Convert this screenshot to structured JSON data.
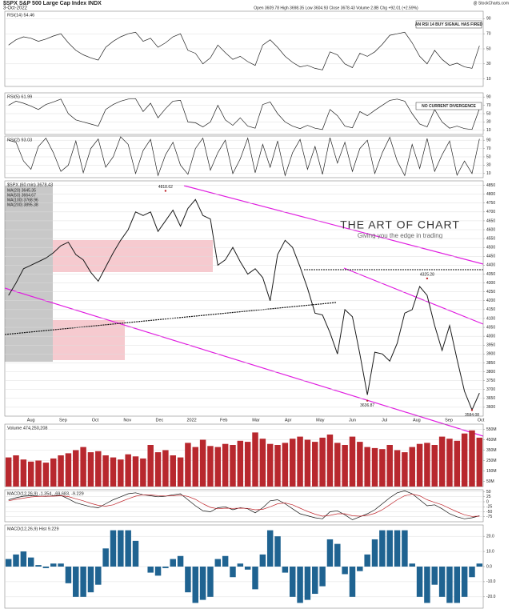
{
  "header": {
    "symbol": "$SPX S&P 500 Large Cap Index INDX",
    "date": "3-Oct-2022",
    "quote": "Open 3609.78  High 3698.35  Low 3604.93  Close 3678.43  Volume 2.8B  Chg +92.01 (+2.59%)",
    "source": "@ StockCharts.com"
  },
  "logo": {
    "title": "THE ART OF CHART",
    "tagline": "Giving you the edge in trading"
  },
  "x_axis": {
    "labels": [
      "Aug",
      "Sep",
      "Oct",
      "Nov",
      "Dec",
      "2022",
      "Feb",
      "Mar",
      "Apr",
      "May",
      "Jun",
      "Jul",
      "Aug",
      "Sep",
      "Oct"
    ]
  },
  "chart_data": [
    {
      "type": "line",
      "title": "RSI(14) 54.46",
      "annotation": "AN RSI 14 BUY SIGNAL HAS FIRED",
      "ylim": [
        0,
        100
      ],
      "yticks": [
        90,
        70,
        50,
        30,
        10
      ],
      "grid": true,
      "series": [
        {
          "name": "RSI(14)",
          "color": "#222222",
          "values": [
            55,
            62,
            66,
            64,
            60,
            63,
            67,
            70,
            58,
            48,
            42,
            38,
            35,
            52,
            60,
            66,
            70,
            72,
            60,
            64,
            52,
            58,
            66,
            70,
            48,
            44,
            30,
            38,
            55,
            45,
            36,
            40,
            33,
            28,
            55,
            62,
            52,
            40,
            32,
            26,
            28,
            24,
            22,
            46,
            42,
            30,
            25,
            44,
            40,
            46,
            56,
            68,
            70,
            72,
            58,
            40,
            30,
            48,
            36,
            28,
            31,
            26,
            24,
            54
          ]
        }
      ]
    },
    {
      "type": "line",
      "title": "RSI(5) 61.99",
      "annotation": "NO CURRENT DIVERGENCE",
      "ylim": [
        0,
        100
      ],
      "yticks": [
        90,
        70,
        50,
        30,
        10
      ],
      "grid": true,
      "series": [
        {
          "name": "RSI(5)",
          "color": "#222222",
          "values": [
            70,
            80,
            75,
            68,
            60,
            72,
            78,
            85,
            50,
            35,
            30,
            25,
            20,
            60,
            72,
            80,
            85,
            86,
            55,
            75,
            40,
            62,
            80,
            82,
            30,
            28,
            18,
            30,
            70,
            35,
            22,
            40,
            20,
            15,
            72,
            78,
            50,
            30,
            20,
            14,
            22,
            15,
            12,
            60,
            45,
            20,
            16,
            55,
            45,
            58,
            70,
            82,
            85,
            80,
            50,
            25,
            18,
            60,
            30,
            15,
            20,
            14,
            12,
            62
          ]
        }
      ]
    },
    {
      "type": "line",
      "title": "RSI(2) 93.03",
      "ylim": [
        0,
        100
      ],
      "yticks": [
        90,
        70,
        50,
        30,
        10
      ],
      "grid": true,
      "series": [
        {
          "name": "RSI(2)",
          "color": "#222222",
          "values": [
            90,
            85,
            40,
            20,
            75,
            95,
            60,
            15,
            30,
            88,
            12,
            70,
            93,
            25,
            50,
            98,
            80,
            10,
            65,
            92,
            5,
            55,
            85,
            30,
            8,
            70,
            95,
            18,
            60,
            90,
            10,
            45,
            95,
            12,
            80,
            25,
            88,
            5,
            60,
            92,
            20,
            75,
            8,
            96,
            35,
            85,
            15,
            70,
            90,
            10,
            60,
            97,
            40,
            5,
            80,
            22,
            94,
            15,
            55,
            88,
            6,
            40,
            10,
            93
          ]
        }
      ]
    },
    {
      "type": "line",
      "title": "$SPX (60 min) 3678.43",
      "legend": [
        "MA(20) 3645.35",
        "MA(50) 3664.67",
        "MA(100) 3768.96",
        "MA(200) 3895.38"
      ],
      "ylim": [
        3550,
        4875
      ],
      "yticks": [
        4850,
        4800,
        4750,
        4700,
        4650,
        4600,
        4550,
        4500,
        4450,
        4400,
        4350,
        4300,
        4250,
        4200,
        4150,
        4100,
        4050,
        4000,
        3950,
        3900,
        3850,
        3800,
        3750,
        3700,
        3650,
        3600
      ],
      "grid": true,
      "annotations": [
        {
          "value": 4818.62,
          "label": "4818.62"
        },
        {
          "value": 3636.87,
          "label": "3636.87"
        },
        {
          "value": 4325.28,
          "label": "4325.28"
        },
        {
          "value": 3584.08,
          "label": "3584.08"
        }
      ],
      "series": [
        {
          "name": "$SPX",
          "color": "#1a1a1a",
          "values": [
            4230,
            4300,
            4380,
            4400,
            4420,
            4440,
            4470,
            4510,
            4530,
            4460,
            4430,
            4360,
            4310,
            4390,
            4470,
            4540,
            4600,
            4700,
            4680,
            4700,
            4590,
            4650,
            4710,
            4620,
            4720,
            4770,
            4680,
            4660,
            4400,
            4430,
            4500,
            4420,
            4350,
            4380,
            4330,
            4200,
            4460,
            4540,
            4500,
            4390,
            4270,
            4130,
            4120,
            4020,
            3900,
            4150,
            4110,
            3900,
            3670,
            3910,
            3900,
            3860,
            3960,
            4130,
            4150,
            4280,
            4230,
            4060,
            3920,
            4060,
            3870,
            3690,
            3585,
            3680
          ]
        }
      ]
    },
    {
      "type": "bar",
      "title": "Volume 474,250,208",
      "ylim": [
        0,
        600000000
      ],
      "yticks": [
        {
          "value": 550000000,
          "label": "550M"
        },
        {
          "value": 450000000,
          "label": "450M"
        },
        {
          "value": 350000000,
          "label": "350M"
        },
        {
          "value": 250000000,
          "label": "250M"
        },
        {
          "value": 150000000,
          "label": "150M"
        },
        {
          "value": 50000000,
          "label": "50M"
        }
      ],
      "grid": true,
      "series": [
        {
          "name": "Volume",
          "color": "#b8282e",
          "values": [
            280000000,
            300000000,
            260000000,
            240000000,
            250000000,
            230000000,
            270000000,
            300000000,
            320000000,
            350000000,
            380000000,
            330000000,
            340000000,
            300000000,
            280000000,
            260000000,
            310000000,
            290000000,
            270000000,
            400000000,
            330000000,
            350000000,
            300000000,
            280000000,
            420000000,
            380000000,
            450000000,
            390000000,
            380000000,
            410000000,
            400000000,
            440000000,
            430000000,
            520000000,
            460000000,
            410000000,
            400000000,
            420000000,
            460000000,
            480000000,
            450000000,
            430000000,
            470000000,
            500000000,
            420000000,
            400000000,
            480000000,
            430000000,
            380000000,
            370000000,
            360000000,
            400000000,
            350000000,
            330000000,
            380000000,
            410000000,
            420000000,
            400000000,
            480000000,
            460000000,
            440000000,
            510000000,
            540000000,
            470000000
          ]
        }
      ]
    },
    {
      "type": "line",
      "title": "MACD(12,26,9) -1.354, -69.683, -9.229",
      "ylim": [
        -100,
        60
      ],
      "yticks": [
        50,
        25,
        0,
        -25,
        -50,
        -75
      ],
      "grid": true,
      "series": [
        {
          "name": "MACD",
          "color": "#111111",
          "values": [
            10,
            20,
            28,
            30,
            28,
            27,
            30,
            32,
            15,
            -5,
            -15,
            -25,
            -30,
            -10,
            10,
            25,
            40,
            45,
            35,
            30,
            25,
            28,
            35,
            40,
            10,
            -20,
            -45,
            -50,
            -30,
            -25,
            -40,
            -30,
            -35,
            -55,
            -30,
            5,
            10,
            -10,
            -35,
            -60,
            -70,
            -80,
            -85,
            -50,
            -45,
            -65,
            -90,
            -75,
            -60,
            -40,
            -10,
            20,
            45,
            55,
            40,
            10,
            -20,
            -15,
            -35,
            -60,
            -75,
            -85,
            -80,
            -70
          ]
        },
        {
          "name": "Signal",
          "color": "#c0282e",
          "values": [
            5,
            12,
            18,
            24,
            27,
            28,
            28,
            30,
            26,
            15,
            5,
            -8,
            -18,
            -22,
            -15,
            0,
            15,
            28,
            35,
            34,
            31,
            29,
            30,
            33,
            27,
            12,
            -10,
            -28,
            -35,
            -32,
            -33,
            -32,
            -33,
            -40,
            -38,
            -25,
            -10,
            -6,
            -15,
            -32,
            -48,
            -62,
            -72,
            -68,
            -60,
            -60,
            -70,
            -72,
            -68,
            -58,
            -40,
            -15,
            10,
            30,
            38,
            30,
            10,
            -3,
            -15,
            -33,
            -50,
            -65,
            -73,
            -72
          ]
        }
      ]
    },
    {
      "type": "bar",
      "title": "MACD(12,26,9) Hist 9.229",
      "ylim": [
        -27.5,
        27.5
      ],
      "yticks": [
        {
          "value": 20,
          "label": "20.0"
        },
        {
          "value": 10,
          "label": "10.0"
        },
        {
          "value": 0,
          "label": "0.0"
        },
        {
          "value": -10,
          "label": "-10.0"
        },
        {
          "value": -20,
          "label": "-20.0"
        }
      ],
      "grid": true,
      "series": [
        {
          "name": "Hist",
          "color": "#1f6391",
          "values": [
            5,
            8,
            10,
            6,
            1,
            -1,
            2,
            2,
            -11,
            -20,
            -20,
            -17,
            -12,
            12,
            24,
            24,
            24,
            17,
            0,
            -4,
            -6,
            -1,
            5,
            7,
            -17,
            -24,
            -22,
            -20,
            5,
            7,
            -7,
            2,
            -2,
            -15,
            8,
            24,
            20,
            -4,
            -20,
            -24,
            -22,
            -18,
            -13,
            18,
            15,
            -5,
            -20,
            -3,
            8,
            18,
            24,
            24,
            24,
            24,
            2,
            -20,
            -24,
            -12,
            -20,
            -24,
            -24,
            -20,
            -7,
            2
          ]
        }
      ]
    }
  ]
}
